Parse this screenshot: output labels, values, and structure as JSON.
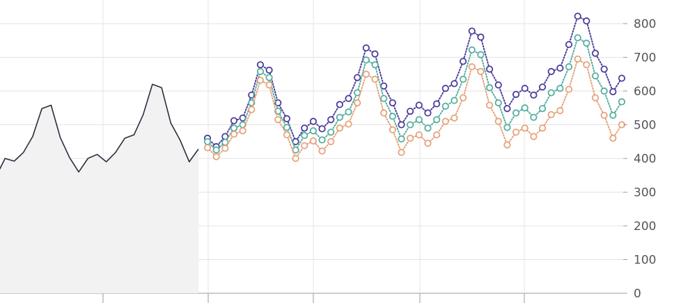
{
  "chart_data": {
    "type": "line",
    "title": "",
    "xlabel": "",
    "ylabel": "",
    "ylim": [
      0,
      850
    ],
    "y_ticks": [
      "0",
      "100",
      "200",
      "300",
      "400",
      "500",
      "600",
      "700",
      "800"
    ],
    "grid": true,
    "legend": "none",
    "history": {
      "values": [
        345,
        400,
        392,
        418,
        465,
        548,
        558,
        462,
        403,
        360,
        400,
        412,
        390,
        418,
        460,
        470,
        530,
        620,
        610,
        505,
        455,
        390,
        428
      ],
      "area_fill": "#f2f2f2",
      "color": "#2b2b3d"
    },
    "series": [
      {
        "color": "#4b3d9c",
        "style": "dotted",
        "values": [
          460,
          435,
          465,
          512,
          520,
          588,
          678,
          662,
          565,
          518,
          450,
          490,
          510,
          488,
          515,
          560,
          578,
          640,
          728,
          710,
          615,
          565,
          500,
          540,
          558,
          535,
          562,
          608,
          622,
          688,
          778,
          760,
          665,
          618,
          548,
          590,
          608,
          588,
          612,
          658,
          668,
          738,
          822,
          808,
          712,
          665,
          598,
          638
        ]
      },
      {
        "color": "#55aea0",
        "style": "dotted",
        "values": [
          450,
          425,
          448,
          490,
          500,
          565,
          658,
          640,
          540,
          492,
          425,
          468,
          482,
          455,
          478,
          522,
          538,
          595,
          692,
          678,
          578,
          525,
          458,
          500,
          515,
          490,
          515,
          555,
          572,
          635,
          722,
          708,
          610,
          565,
          492,
          535,
          550,
          522,
          548,
          595,
          608,
          672,
          758,
          742,
          645,
          600,
          528,
          568
        ]
      },
      {
        "color": "#e7a27a",
        "style": "dotted",
        "values": [
          432,
          405,
          430,
          472,
          482,
          545,
          632,
          618,
          515,
          470,
          400,
          438,
          452,
          422,
          450,
          490,
          502,
          565,
          650,
          635,
          535,
          485,
          418,
          460,
          470,
          445,
          470,
          510,
          520,
          580,
          672,
          658,
          558,
          510,
          440,
          478,
          490,
          465,
          490,
          530,
          542,
          605,
          695,
          678,
          580,
          528,
          460,
          500
        ]
      }
    ]
  }
}
